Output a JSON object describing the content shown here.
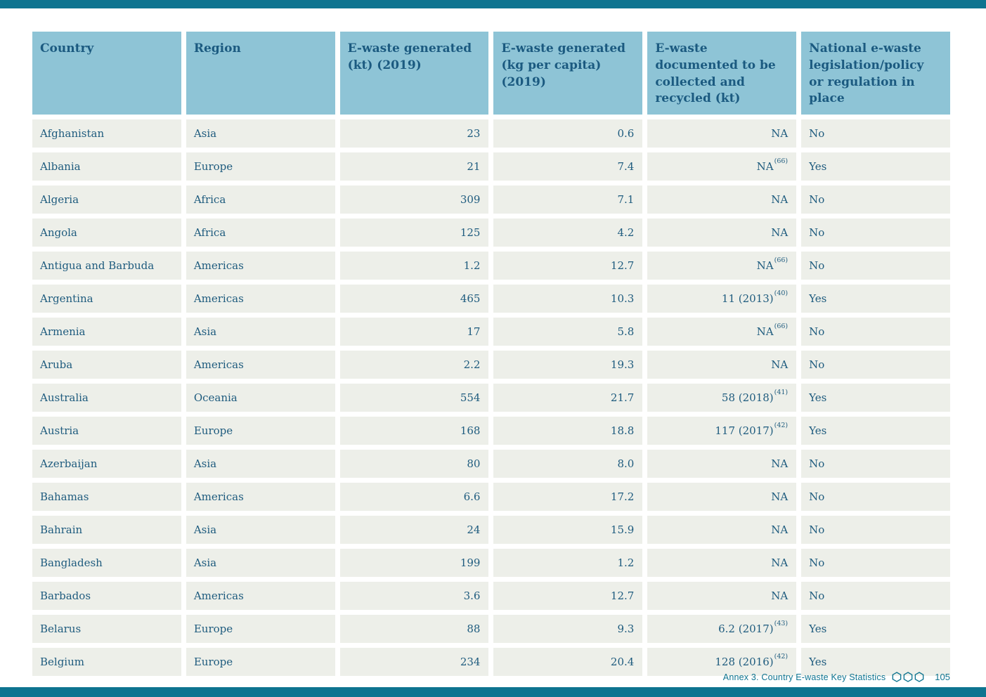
{
  "page": {
    "footer": {
      "annex_label": "Annex 3. Country E-waste Key Statistics",
      "page_number": "105"
    },
    "colors": {
      "bar": "#0e7490",
      "header_bg": "#8ec4d6",
      "header_text": "#1b5a80",
      "row_bg": "#edefe9",
      "body_text": "#1e5b7e",
      "footer_text": "#0e7490"
    }
  },
  "table": {
    "columns": [
      {
        "key": "country",
        "label": "Country",
        "align": "left"
      },
      {
        "key": "region",
        "label": "Region",
        "align": "left"
      },
      {
        "key": "ewaste_kt",
        "label": "E-waste generated (kt) (2019)",
        "align": "right"
      },
      {
        "key": "ewaste_kg",
        "label": "E-waste generated (kg per capita) (2019)",
        "align": "right"
      },
      {
        "key": "collected",
        "label": "E-waste documented to be collected and recycled (kt)",
        "align": "right"
      },
      {
        "key": "legislation",
        "label": "National e-waste legislation/policy or regulation in place",
        "align": "left"
      }
    ],
    "rows": [
      {
        "country": "Afghanistan",
        "region": "Asia",
        "ewaste_kt": "23",
        "ewaste_kg": "0.6",
        "collected": "NA",
        "collected_sup": "",
        "legislation": "No"
      },
      {
        "country": "Albania",
        "region": "Europe",
        "ewaste_kt": "21",
        "ewaste_kg": "7.4",
        "collected": "NA",
        "collected_sup": "(66)",
        "legislation": "Yes"
      },
      {
        "country": "Algeria",
        "region": "Africa",
        "ewaste_kt": "309",
        "ewaste_kg": "7.1",
        "collected": "NA",
        "collected_sup": "",
        "legislation": "No"
      },
      {
        "country": "Angola",
        "region": "Africa",
        "ewaste_kt": "125",
        "ewaste_kg": "4.2",
        "collected": "NA",
        "collected_sup": "",
        "legislation": "No"
      },
      {
        "country": "Antigua and Barbuda",
        "region": "Americas",
        "ewaste_kt": "1.2",
        "ewaste_kg": "12.7",
        "collected": "NA",
        "collected_sup": "(66)",
        "legislation": "No"
      },
      {
        "country": "Argentina",
        "region": "Americas",
        "ewaste_kt": "465",
        "ewaste_kg": "10.3",
        "collected": "11 (2013)",
        "collected_sup": "(40)",
        "legislation": "Yes"
      },
      {
        "country": "Armenia",
        "region": "Asia",
        "ewaste_kt": "17",
        "ewaste_kg": "5.8",
        "collected": "NA",
        "collected_sup": "(66)",
        "legislation": "No"
      },
      {
        "country": "Aruba",
        "region": "Americas",
        "ewaste_kt": "2.2",
        "ewaste_kg": "19.3",
        "collected": "NA",
        "collected_sup": "",
        "legislation": "No"
      },
      {
        "country": "Australia",
        "region": "Oceania",
        "ewaste_kt": "554",
        "ewaste_kg": "21.7",
        "collected": "58 (2018)",
        "collected_sup": "(41)",
        "legislation": "Yes"
      },
      {
        "country": "Austria",
        "region": "Europe",
        "ewaste_kt": "168",
        "ewaste_kg": "18.8",
        "collected": "117 (2017)",
        "collected_sup": "(42)",
        "legislation": "Yes"
      },
      {
        "country": "Azerbaijan",
        "region": "Asia",
        "ewaste_kt": "80",
        "ewaste_kg": "8.0",
        "collected": "NA",
        "collected_sup": "",
        "legislation": "No"
      },
      {
        "country": "Bahamas",
        "region": "Americas",
        "ewaste_kt": "6.6",
        "ewaste_kg": "17.2",
        "collected": "NA",
        "collected_sup": "",
        "legislation": "No"
      },
      {
        "country": "Bahrain",
        "region": "Asia",
        "ewaste_kt": "24",
        "ewaste_kg": "15.9",
        "collected": "NA",
        "collected_sup": "",
        "legislation": "No"
      },
      {
        "country": "Bangladesh",
        "region": "Asia",
        "ewaste_kt": "199",
        "ewaste_kg": "1.2",
        "collected": "NA",
        "collected_sup": "",
        "legislation": "No"
      },
      {
        "country": "Barbados",
        "region": "Americas",
        "ewaste_kt": "3.6",
        "ewaste_kg": "12.7",
        "collected": "NA",
        "collected_sup": "",
        "legislation": "No"
      },
      {
        "country": "Belarus",
        "region": "Europe",
        "ewaste_kt": "88",
        "ewaste_kg": "9.3",
        "collected": "6.2 (2017)",
        "collected_sup": "(43)",
        "legislation": "Yes"
      },
      {
        "country": "Belgium",
        "region": "Europe",
        "ewaste_kt": "234",
        "ewaste_kg": "20.4",
        "collected": "128 (2016)",
        "collected_sup": "(42)",
        "legislation": "Yes"
      }
    ]
  }
}
